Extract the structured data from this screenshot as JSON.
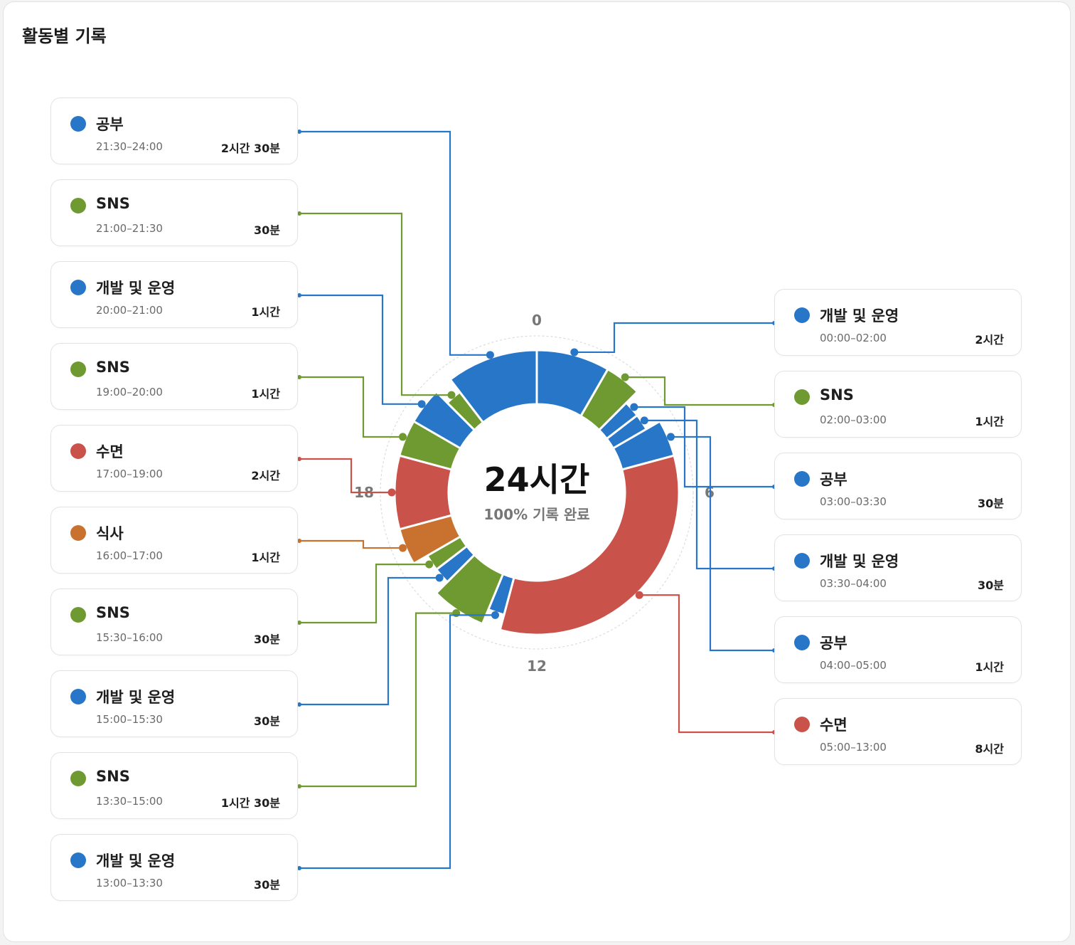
{
  "title": "활동별 기록",
  "colors": {
    "개발 및 운영": "#2876c8",
    "공부": "#2876c8",
    "SNS": "#6f9a31",
    "수면": "#c9524a",
    "식사": "#c9712e"
  },
  "center": {
    "total": "24시간",
    "subtitle": "100% 기록 완료"
  },
  "left_items": [
    {
      "name": "공부",
      "range": "21:30–24:00",
      "duration": "2시간 30분"
    },
    {
      "name": "SNS",
      "range": "21:00–21:30",
      "duration": "30분"
    },
    {
      "name": "개발 및 운영",
      "range": "20:00–21:00",
      "duration": "1시간"
    },
    {
      "name": "SNS",
      "range": "19:00–20:00",
      "duration": "1시간"
    },
    {
      "name": "수면",
      "range": "17:00–19:00",
      "duration": "2시간"
    },
    {
      "name": "식사",
      "range": "16:00–17:00",
      "duration": "1시간"
    },
    {
      "name": "SNS",
      "range": "15:30–16:00",
      "duration": "30분"
    },
    {
      "name": "개발 및 운영",
      "range": "15:00–15:30",
      "duration": "30분"
    },
    {
      "name": "SNS",
      "range": "13:30–15:00",
      "duration": "1시간 30분"
    },
    {
      "name": "개발 및 운영",
      "range": "13:00–13:30",
      "duration": "30분"
    }
  ],
  "right_items": [
    {
      "name": "개발 및 운영",
      "range": "00:00–02:00",
      "duration": "2시간"
    },
    {
      "name": "SNS",
      "range": "02:00–03:00",
      "duration": "1시간"
    },
    {
      "name": "공부",
      "range": "03:00–03:30",
      "duration": "30분"
    },
    {
      "name": "개발 및 운영",
      "range": "03:30–04:00",
      "duration": "30분"
    },
    {
      "name": "공부",
      "range": "04:00–05:00",
      "duration": "1시간"
    },
    {
      "name": "수면",
      "range": "05:00–13:00",
      "duration": "8시간"
    }
  ],
  "chart_data": {
    "type": "pie",
    "variant": "donut",
    "total_hours": 24,
    "ticks": [
      "0",
      "6",
      "12",
      "18"
    ],
    "segments": [
      {
        "name": "개발 및 운영",
        "start": 0,
        "end": 2
      },
      {
        "name": "SNS",
        "start": 2,
        "end": 3
      },
      {
        "name": "공부",
        "start": 3,
        "end": 3.5
      },
      {
        "name": "개발 및 운영",
        "start": 3.5,
        "end": 4
      },
      {
        "name": "공부",
        "start": 4,
        "end": 5
      },
      {
        "name": "수면",
        "start": 5,
        "end": 13
      },
      {
        "name": "개발 및 운영",
        "start": 13,
        "end": 13.5
      },
      {
        "name": "SNS",
        "start": 13.5,
        "end": 15
      },
      {
        "name": "개발 및 운영",
        "start": 15,
        "end": 15.5
      },
      {
        "name": "SNS",
        "start": 15.5,
        "end": 16
      },
      {
        "name": "식사",
        "start": 16,
        "end": 17
      },
      {
        "name": "수면",
        "start": 17,
        "end": 19
      },
      {
        "name": "SNS",
        "start": 19,
        "end": 20
      },
      {
        "name": "개발 및 운영",
        "start": 20,
        "end": 21
      },
      {
        "name": "SNS",
        "start": 21,
        "end": 21.5
      },
      {
        "name": "공부",
        "start": 21.5,
        "end": 24
      }
    ]
  }
}
